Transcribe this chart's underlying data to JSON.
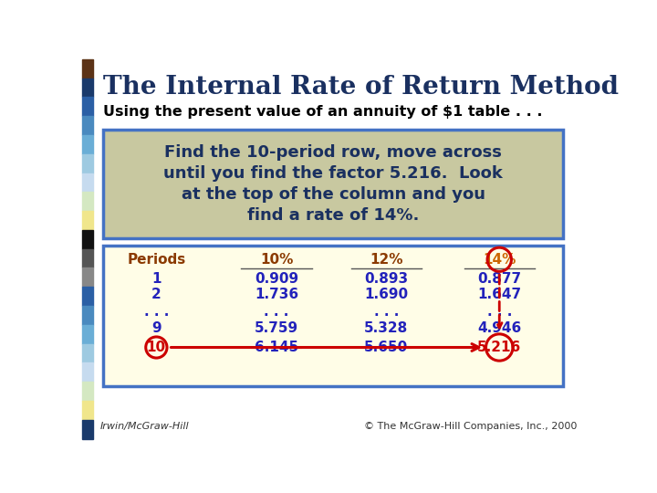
{
  "title": "The Internal Rate of Return Method",
  "subtitle": "Using the present value of an annuity of $1 table . . .",
  "box_text_lines": [
    "Find the 10-period row, move across",
    "until you find the factor 5.216.  Look",
    "at the top of the column and you",
    "find a rate of 14%."
  ],
  "table_headers": [
    "Periods",
    "10%",
    "12%",
    "14%"
  ],
  "table_rows": [
    [
      "1",
      "0.909",
      "0.893",
      "0.877"
    ],
    [
      "2",
      "1.736",
      "1.690",
      "1.647"
    ],
    [
      ". . .",
      ". . .",
      ". . .",
      ". . ."
    ],
    [
      "9",
      "5.759",
      "5.328",
      "4.946"
    ],
    [
      "10",
      "6.145",
      "5.650",
      "5.216"
    ]
  ],
  "bg_color": "#ffffff",
  "title_color": "#1a3060",
  "subtitle_color": "#000000",
  "box_bg": "#c8c8a0",
  "box_border": "#4472c4",
  "table_bg": "#fffde7",
  "table_border": "#4472c4",
  "header_color": "#8b3a00",
  "cell_color_blue": "#2222bb",
  "highlight_color": "#cc0000",
  "footer_left": "Irwin/McGraw-Hill",
  "footer_right": "© The McGraw-Hill Companies, Inc., 2000",
  "left_bar_colors": [
    "#5c3317",
    "#1a3a6b",
    "#2b5fa5",
    "#4a8abf",
    "#6aaed6",
    "#9ecae1",
    "#c6dbef",
    "#d4e8c2",
    "#f0e68c",
    "#111111",
    "#555555",
    "#888888",
    "#2b5fa5",
    "#4a8abf",
    "#6aaed6",
    "#9ecae1",
    "#c6dbef",
    "#d4e8c2",
    "#f0e68c",
    "#1a3a6b"
  ]
}
